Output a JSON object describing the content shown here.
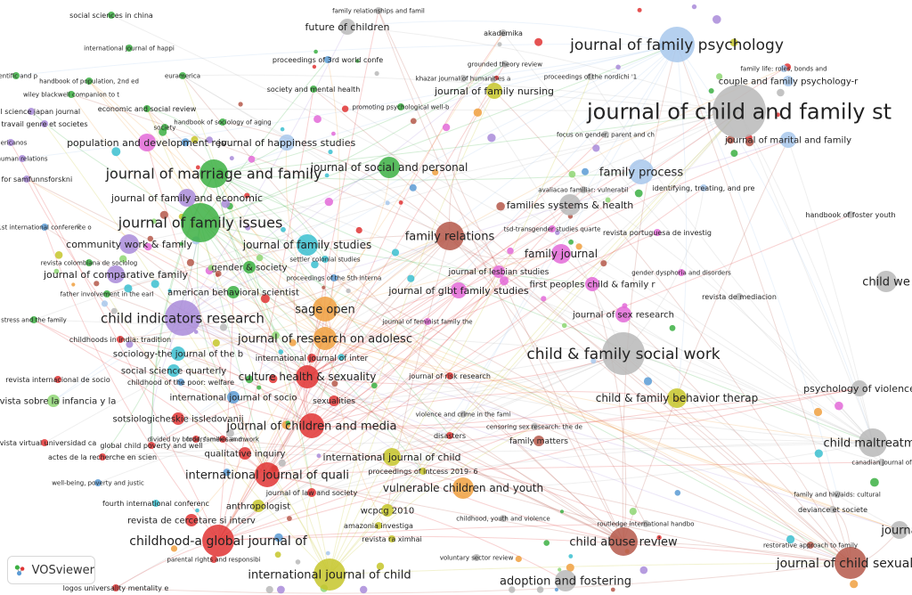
{
  "app": {
    "name": "VOSviewer"
  },
  "cluster_colors": {
    "green": "#3cb043",
    "purple": "#a98bd9",
    "red": "#e03434",
    "blue": "#5b9bd5",
    "yellow": "#c6c62a",
    "cyan": "#3bbfd0",
    "orange": "#f0a040",
    "grey": "#b8b8b8",
    "pink": "#e36ad8",
    "brown": "#b5584a",
    "lightblue": "#a8c8ec",
    "lime": "#8ed673"
  },
  "nodes": [
    {
      "label": "journal of child and family st",
      "color": "grey",
      "size": 30,
      "font": 24
    },
    {
      "label": "journal of family psychology",
      "color": "lightblue",
      "size": 20,
      "font": 17
    },
    {
      "label": "journal of marriage and family",
      "color": "green",
      "size": 16,
      "font": 16
    },
    {
      "label": "journal of family issues",
      "color": "green",
      "size": 22,
      "font": 16
    },
    {
      "label": "child & family social work",
      "color": "grey",
      "size": 24,
      "font": 17
    },
    {
      "label": "child indicators research",
      "color": "purple",
      "size": 20,
      "font": 15
    },
    {
      "label": "childhood-a global journal of",
      "color": "red",
      "size": 18,
      "font": 14
    },
    {
      "label": "international journal of child",
      "color": "yellow",
      "size": 18,
      "font": 13
    },
    {
      "label": "family relations",
      "color": "brown",
      "size": 16,
      "font": 13
    },
    {
      "label": "child maltreatme",
      "color": "grey",
      "size": 16,
      "font": 13
    },
    {
      "label": "journal of child sexual a",
      "color": "brown",
      "size": 18,
      "font": 14
    },
    {
      "label": "child abuse review",
      "color": "brown",
      "size": 16,
      "font": 13
    },
    {
      "label": "adoption and fostering",
      "color": "grey",
      "size": 12,
      "font": 13
    },
    {
      "label": "international journal of quali",
      "color": "red",
      "size": 14,
      "font": 13
    },
    {
      "label": "journal of research on adolesc",
      "color": "orange",
      "size": 13,
      "font": 13
    },
    {
      "label": "journal of children and media",
      "color": "red",
      "size": 14,
      "font": 13
    },
    {
      "label": "sage open",
      "color": "orange",
      "size": 14,
      "font": 13
    },
    {
      "label": "culture health & sexuality",
      "color": "red",
      "size": 13,
      "font": 12
    },
    {
      "label": "family process",
      "color": "lightblue",
      "size": 14,
      "font": 13
    },
    {
      "label": "families systems & health",
      "color": "grey",
      "size": 12,
      "font": 11
    },
    {
      "label": "family journal",
      "color": "pink",
      "size": 11,
      "font": 12
    },
    {
      "label": "journal of family studies",
      "color": "cyan",
      "size": 12,
      "font": 12
    },
    {
      "label": "community work & family",
      "color": "purple",
      "size": 11,
      "font": 11
    },
    {
      "label": "journal of comparative family",
      "color": "purple",
      "size": 10,
      "font": 11
    },
    {
      "label": "journal of family and economic",
      "color": "purple",
      "size": 10,
      "font": 11
    },
    {
      "label": "population and development rev",
      "color": "pink",
      "size": 10,
      "font": 11
    },
    {
      "label": "journal of happiness studies",
      "color": "lightblue",
      "size": 9,
      "font": 11
    },
    {
      "label": "journal of social and personal",
      "color": "green",
      "size": 12,
      "font": 12
    },
    {
      "label": "future of children",
      "color": "grey",
      "size": 9,
      "font": 11
    },
    {
      "label": "journal of family nursing",
      "color": "yellow",
      "size": 9,
      "font": 11
    },
    {
      "label": "journal of marital and family",
      "color": "lightblue",
      "size": 9,
      "font": 10
    },
    {
      "label": "couple and family psychology-r",
      "color": "lightblue",
      "size": 6,
      "font": 10
    },
    {
      "label": "child & family behavior therap",
      "color": "yellow",
      "size": 11,
      "font": 12
    },
    {
      "label": "psychology of violence",
      "color": "grey",
      "size": 9,
      "font": 11
    },
    {
      "label": "journal of sex research",
      "color": "pink",
      "size": 9,
      "font": 10
    },
    {
      "label": "journal of glbt family studies",
      "color": "pink",
      "size": 9,
      "font": 11
    },
    {
      "label": "first peoples child & family r",
      "color": "pink",
      "size": 8,
      "font": 10
    },
    {
      "label": "journal of lesbian studies",
      "color": "pink",
      "size": 7,
      "font": 9
    },
    {
      "label": "vulnerable children and youth",
      "color": "orange",
      "size": 12,
      "font": 12
    },
    {
      "label": "gender & society",
      "color": "green",
      "size": 7,
      "font": 10
    },
    {
      "label": "american behavioral scientist",
      "color": "green",
      "size": 7,
      "font": 10
    },
    {
      "label": "sociology-the journal of the b",
      "color": "cyan",
      "size": 8,
      "font": 10
    },
    {
      "label": "social science quarterly",
      "color": "cyan",
      "size": 7,
      "font": 10
    },
    {
      "label": "international journal of socio",
      "color": "blue",
      "size": 7,
      "font": 10
    },
    {
      "label": "sotsiologicheskie issledovanij",
      "color": "red",
      "size": 7,
      "font": 10
    },
    {
      "label": "qualitative inquiry",
      "color": "red",
      "size": 7,
      "font": 10
    },
    {
      "label": "international journal of child",
      "color": "yellow",
      "size": 10,
      "font": 11
    },
    {
      "label": "anthropologist",
      "color": "yellow",
      "size": 7,
      "font": 10
    },
    {
      "label": "revista de cercetare si interv",
      "color": "red",
      "size": 7,
      "font": 10
    },
    {
      "label": "wcpcg 2010",
      "color": "yellow",
      "size": 7,
      "font": 10
    },
    {
      "label": "journa",
      "color": "grey",
      "size": 10,
      "font": 13
    },
    {
      "label": "child we",
      "color": "grey",
      "size": 12,
      "font": 13
    },
    {
      "label": "family matters",
      "color": "brown",
      "size": 6,
      "font": 9
    },
    {
      "label": "sexualities",
      "color": "red",
      "size": 6,
      "font": 9
    },
    {
      "label": "revista sobre la infancia y la",
      "color": "lime",
      "size": 7,
      "font": 10
    },
    {
      "label": "journal of law and society",
      "color": "red",
      "size": 5,
      "font": 8
    },
    {
      "label": "international journal of inter",
      "color": "red",
      "size": 5,
      "font": 9
    },
    {
      "label": "childhood of the poor: welfare",
      "color": "blue",
      "size": 4,
      "font": 8
    },
    {
      "label": "fourth international conferenc",
      "color": "cyan",
      "size": 4,
      "font": 8
    },
    {
      "label": "global child poverty and well",
      "color": "red",
      "size": 4,
      "font": 8
    },
    {
      "label": "actes de la recherche en scien",
      "color": "red",
      "size": 4,
      "font": 8
    },
    {
      "label": "divided by borders: mexican m",
      "color": "red",
      "size": 4,
      "font": 7
    },
    {
      "label": "food, families and work",
      "color": "red",
      "size": 4,
      "font": 7
    },
    {
      "label": "well-being, poverty and justic",
      "color": "blue",
      "size": 4,
      "font": 7
    },
    {
      "label": "childhoods in india: tradition",
      "color": "red",
      "size": 4,
      "font": 8
    },
    {
      "label": "revista internacional de socio",
      "color": "red",
      "size": 4,
      "font": 8
    },
    {
      "label": "revista virtual universidad ca",
      "color": "red",
      "size": 4,
      "font": 8
    },
    {
      "label": "stress and the family",
      "color": "green",
      "size": 4,
      "font": 7
    },
    {
      "label": "father involvement in the earl",
      "color": "green",
      "size": 4,
      "font": 7
    },
    {
      "label": "revista colombiana de sociolog",
      "color": "green",
      "size": 4,
      "font": 7
    },
    {
      "label": "1st international conference o",
      "color": "blue",
      "size": 4,
      "font": 7
    },
    {
      "label": "skrift for samfunnsforskni",
      "color": "purple",
      "size": 4,
      "font": 8
    },
    {
      "label": "human relations",
      "color": "purple",
      "size": 4,
      "font": 7
    },
    {
      "label": "mericanos",
      "color": "purple",
      "size": 4,
      "font": 7
    },
    {
      "label": "travail genre et societes",
      "color": "purple",
      "size": 4,
      "font": 8
    },
    {
      "label": "social science japan journal",
      "color": "purple",
      "size": 4,
      "font": 8
    },
    {
      "label": "wiley blackwell companion to t",
      "color": "green",
      "size": 4,
      "font": 7
    },
    {
      "label": "handbook of population, 2nd ed",
      "color": "green",
      "size": 4,
      "font": 7
    },
    {
      "label": "dentific and p",
      "color": "green",
      "size": 4,
      "font": 7
    },
    {
      "label": "economic and social review",
      "color": "green",
      "size": 4,
      "font": 8
    },
    {
      "label": "society",
      "color": "green",
      "size": 4,
      "font": 7
    },
    {
      "label": "euramerica",
      "color": "green",
      "size": 4,
      "font": 7
    },
    {
      "label": "handbook of sociology of aging",
      "color": "green",
      "size": 4,
      "font": 7
    },
    {
      "label": "international journal of happi",
      "color": "green",
      "size": 4,
      "font": 7
    },
    {
      "label": "social sciences in china",
      "color": "green",
      "size": 4,
      "font": 8
    },
    {
      "label": "family relationships and famil",
      "color": "grey",
      "size": 4,
      "font": 7
    },
    {
      "label": "proceedings of 3rd world confe",
      "color": "blue",
      "size": 4,
      "font": 8
    },
    {
      "label": "society and mental health",
      "color": "green",
      "size": 4,
      "font": 8
    },
    {
      "label": "akademika",
      "color": "grey",
      "size": 4,
      "font": 8
    },
    {
      "label": "grounded theory review",
      "color": "grey",
      "size": 4,
      "font": 7
    },
    {
      "label": "khazar journal of humanities a",
      "color": "grey",
      "size": 4,
      "font": 7
    },
    {
      "label": "proceedings of the nordichi '1",
      "color": "grey",
      "size": 4,
      "font": 7
    },
    {
      "label": "promoting psychological well-b",
      "color": "green",
      "size": 4,
      "font": 7
    },
    {
      "label": "focus on gender, parent and ch",
      "color": "grey",
      "size": 4,
      "font": 7
    },
    {
      "label": "avaliacao familiar: vulnerabil",
      "color": "grey",
      "size": 4,
      "font": 7
    },
    {
      "label": "identifying, treating, and pre",
      "color": "lightblue",
      "size": 4,
      "font": 8
    },
    {
      "label": "family life: roles, bonds and",
      "color": "lightblue",
      "size": 4,
      "font": 7
    },
    {
      "label": "handbook of foster youth",
      "color": "grey",
      "size": 4,
      "font": 8
    },
    {
      "label": "tsd-transgender studies quarte",
      "color": "pink",
      "size": 4,
      "font": 7
    },
    {
      "label": "revista portuguesa de investig",
      "color": "pink",
      "size": 4,
      "font": 8
    },
    {
      "label": "settler colonial studies",
      "color": "cyan",
      "size": 4,
      "font": 7
    },
    {
      "label": "proceedings of the 5th interna",
      "color": "blue",
      "size": 4,
      "font": 7
    },
    {
      "label": "gender dysphoria and disorders",
      "color": "pink",
      "size": 4,
      "font": 7
    },
    {
      "label": "revista de mediacion",
      "color": "grey",
      "size": 4,
      "font": 8
    },
    {
      "label": "journal of feminist family the",
      "color": "pink",
      "size": 4,
      "font": 7
    },
    {
      "label": "journal of risk research",
      "color": "red",
      "size": 4,
      "font": 8
    },
    {
      "label": "violence and crime in the fami",
      "color": "grey",
      "size": 4,
      "font": 7
    },
    {
      "label": "censoring sex research: the de",
      "color": "grey",
      "size": 4,
      "font": 7
    },
    {
      "label": "disasters",
      "color": "red",
      "size": 4,
      "font": 8
    },
    {
      "label": "proceedings of intcess 2019- 6",
      "color": "yellow",
      "size": 4,
      "font": 8
    },
    {
      "label": "childhood, youth and violence",
      "color": "grey",
      "size": 4,
      "font": 7
    },
    {
      "label": "amazonia investiga",
      "color": "yellow",
      "size": 4,
      "font": 8
    },
    {
      "label": "revista ra ximhai",
      "color": "yellow",
      "size": 4,
      "font": 8
    },
    {
      "label": "voluntary sector review",
      "color": "grey",
      "size": 4,
      "font": 7
    },
    {
      "label": "routledge international handbo",
      "color": "grey",
      "size": 4,
      "font": 7
    },
    {
      "label": "parental rights and responsibi",
      "color": "red",
      "size": 4,
      "font": 7
    },
    {
      "label": "logos universality mentality e",
      "color": "red",
      "size": 4,
      "font": 8
    },
    {
      "label": "family and hiv/aids: cultural",
      "color": "grey",
      "size": 4,
      "font": 7
    },
    {
      "label": "deviance et societe",
      "color": "grey",
      "size": 4,
      "font": 8
    },
    {
      "label": "canadian journal of",
      "color": "grey",
      "size": 4,
      "font": 7
    },
    {
      "label": "restorative approach to family",
      "color": "brown",
      "size": 4,
      "font": 7
    }
  ]
}
